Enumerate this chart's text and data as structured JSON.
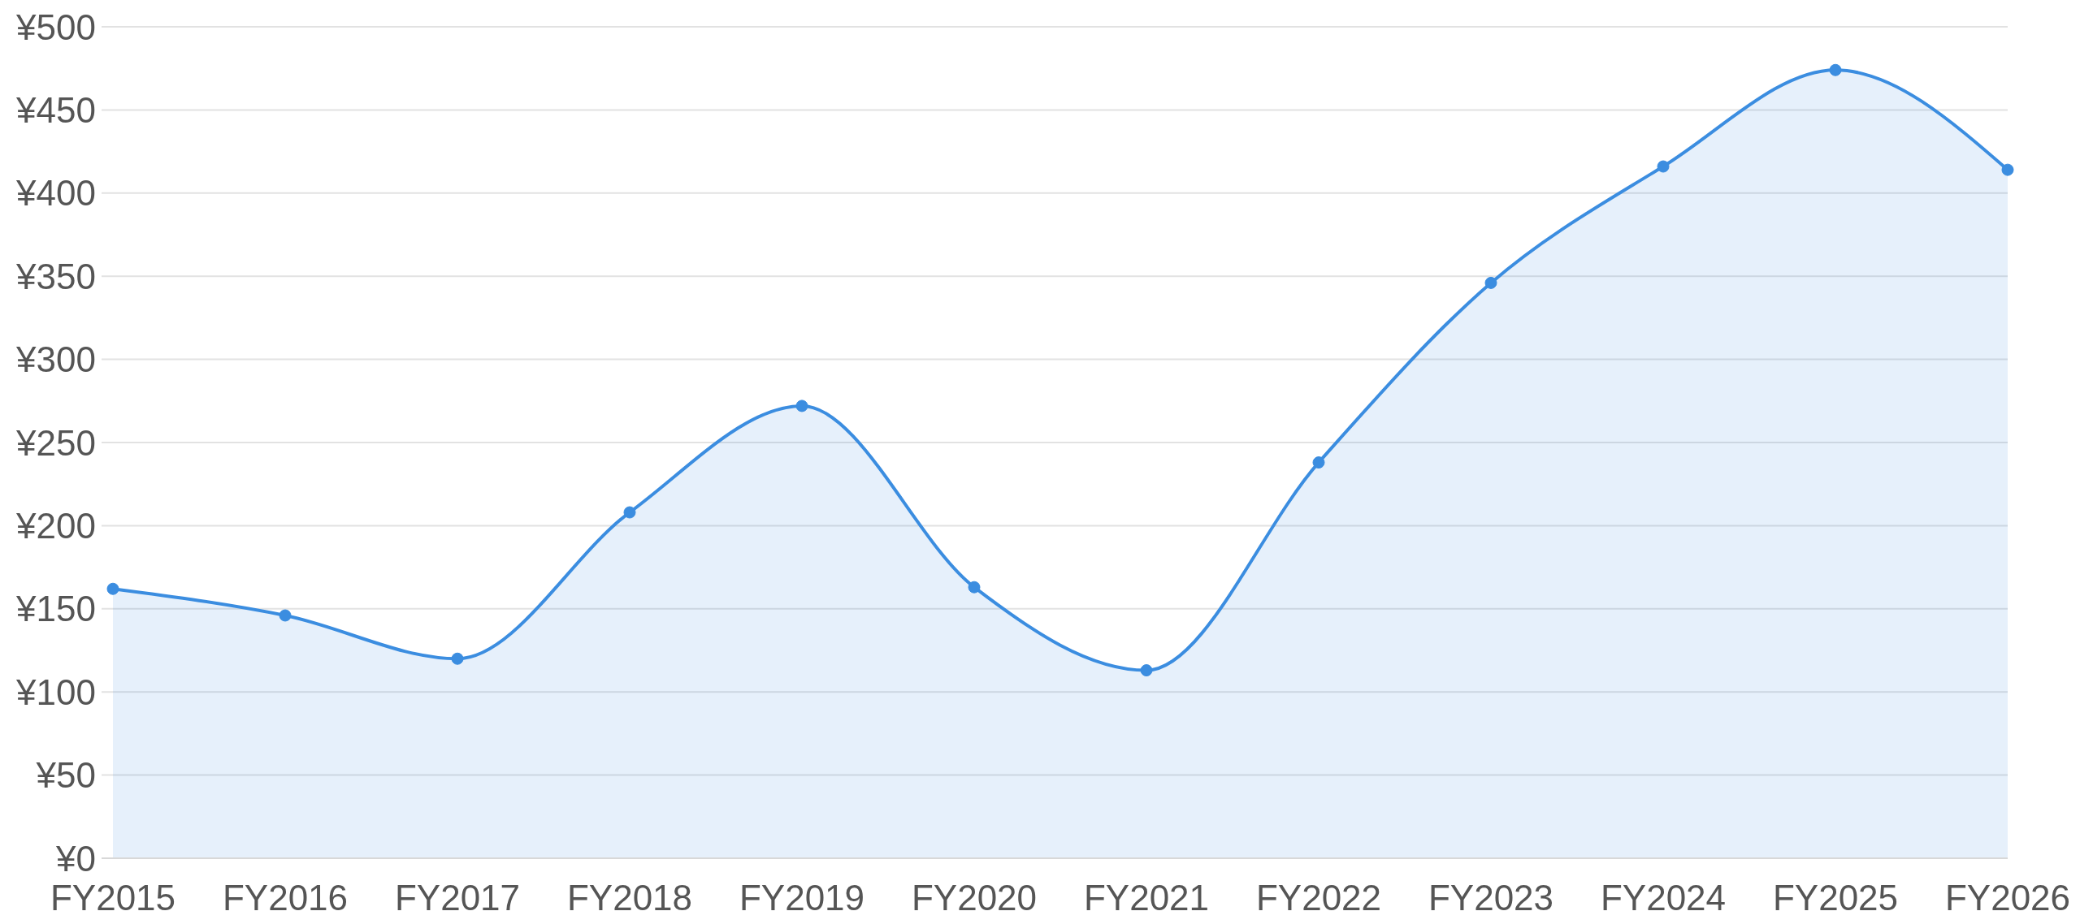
{
  "chart_data": {
    "type": "area",
    "categories": [
      "FY2015",
      "FY2016",
      "FY2017",
      "FY2018",
      "FY2019",
      "FY2020",
      "FY2021",
      "FY2022",
      "FY2023",
      "FY2024",
      "FY2025",
      "FY2026"
    ],
    "values": [
      162,
      146,
      120,
      208,
      272,
      163,
      113,
      238,
      346,
      416,
      474,
      414
    ],
    "color": "#3b8de0",
    "ylim": [
      0,
      500
    ],
    "yticks": [
      {
        "value": 0,
        "label": "¥0"
      },
      {
        "value": 50,
        "label": "¥50"
      },
      {
        "value": 100,
        "label": "¥100"
      },
      {
        "value": 150,
        "label": "¥150"
      },
      {
        "value": 200,
        "label": "¥200"
      },
      {
        "value": 250,
        "label": "¥250"
      },
      {
        "value": 300,
        "label": "¥300"
      },
      {
        "value": 350,
        "label": "¥350"
      },
      {
        "value": 400,
        "label": "¥400"
      },
      {
        "value": 450,
        "label": "¥450"
      },
      {
        "value": 500,
        "label": "¥500"
      }
    ],
    "grid": "y",
    "marker": "circle"
  }
}
